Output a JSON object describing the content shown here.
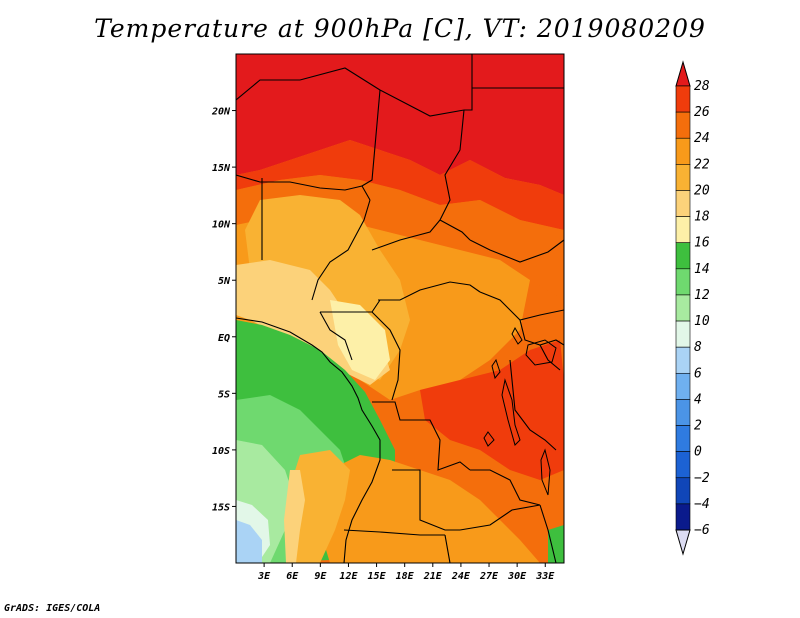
{
  "title": "Temperature at 900hPa [C], VT: 2019080209",
  "credit": "GrADS: IGES/COLA",
  "map": {
    "lon_range": [
      0,
      35
    ],
    "lat_range": [
      -20,
      25
    ],
    "lat_ticks": [
      {
        "value": 20,
        "label": "20N"
      },
      {
        "value": 15,
        "label": "15N"
      },
      {
        "value": 10,
        "label": "10N"
      },
      {
        "value": 5,
        "label": "5N"
      },
      {
        "value": 0,
        "label": "EQ"
      },
      {
        "value": -5,
        "label": "5S"
      },
      {
        "value": -10,
        "label": "10S"
      },
      {
        "value": -15,
        "label": "15S"
      }
    ],
    "lon_ticks": [
      {
        "value": 3,
        "label": "3E"
      },
      {
        "value": 6,
        "label": "6E"
      },
      {
        "value": 9,
        "label": "9E"
      },
      {
        "value": 12,
        "label": "12E"
      },
      {
        "value": 15,
        "label": "15E"
      },
      {
        "value": 18,
        "label": "18E"
      },
      {
        "value": 21,
        "label": "21E"
      },
      {
        "value": 24,
        "label": "24E"
      },
      {
        "value": 27,
        "label": "27E"
      },
      {
        "value": 30,
        "label": "30E"
      },
      {
        "value": 33,
        "label": "33E"
      }
    ]
  },
  "colorbar": {
    "levels": [
      "28",
      "26",
      "24",
      "22",
      "20",
      "18",
      "16",
      "14",
      "12",
      "10",
      "8",
      "6",
      "4",
      "2",
      "0",
      "−2",
      "−4",
      "−6"
    ],
    "colors_top_to_bottom": [
      "#e31a1c",
      "#f03c0c",
      "#f46e0c",
      "#f89a1a",
      "#f9b233",
      "#fcd27a",
      "#fdf0a8",
      "#3ebf3e",
      "#6fd96f",
      "#a8eaa0",
      "#e2f7e8",
      "#aad3f5",
      "#6fb0f0",
      "#4b94e6",
      "#2f7be0",
      "#1c62d4",
      "#1046b8",
      "#0a1a8c",
      "#dcdcf2"
    ]
  }
}
